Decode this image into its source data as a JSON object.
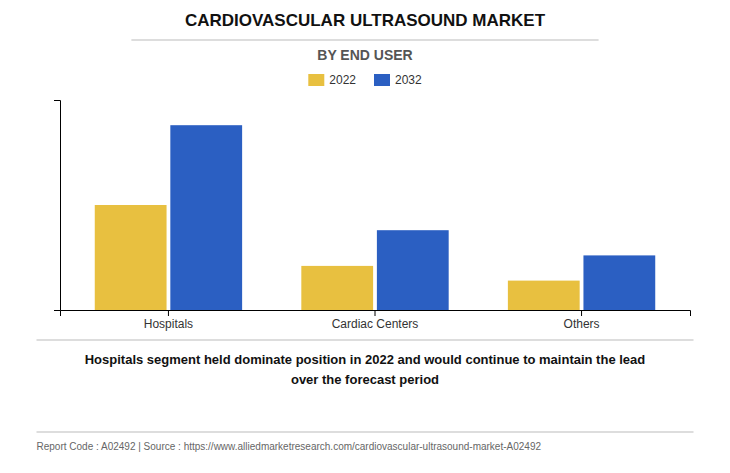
{
  "chart_data": {
    "type": "bar",
    "title": "CARDIOVASCULAR ULTRASOUND MARKET",
    "subtitle": "BY END USER",
    "categories": [
      "Hospitals",
      "Cardiac Centers",
      "Others"
    ],
    "series": [
      {
        "name": "2022",
        "color": "#E8C040",
        "values": [
          0.5,
          0.21,
          0.14
        ]
      },
      {
        "name": "2032",
        "color": "#2B5FC2",
        "values": [
          0.88,
          0.38,
          0.26
        ]
      }
    ],
    "ylim": [
      0,
      1.0
    ],
    "yticks": [],
    "grid": false,
    "legend": "top",
    "tick_labels": "x",
    "annotations": [
      "Hospitals segment held dominate position in 2022 and would continue to maintain the lead\nover the forecast period",
      "Report Code : A02492  |  Source : https://www.alliedmarketresearch.com/cardiovascular-ultrasound-market-A02492"
    ]
  }
}
